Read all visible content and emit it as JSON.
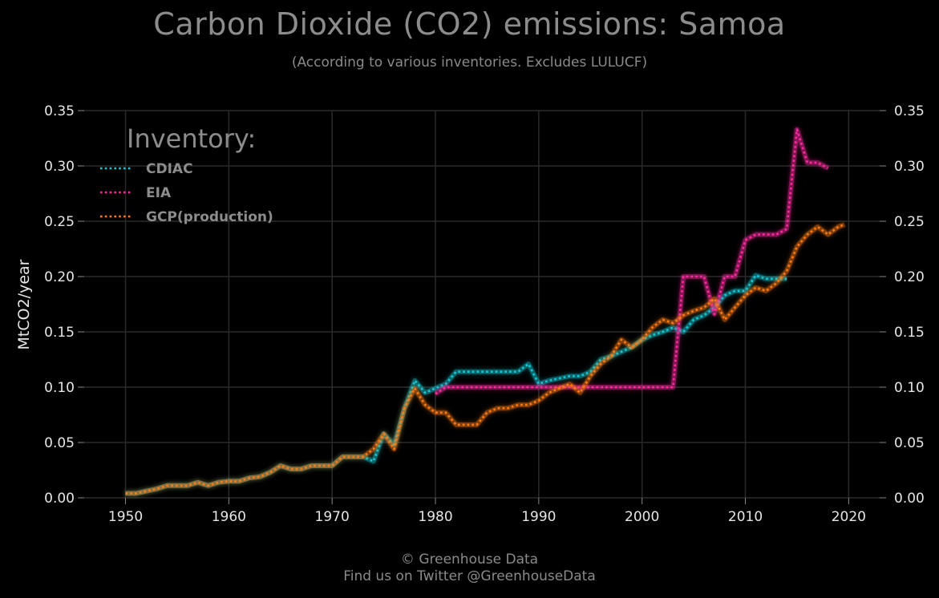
{
  "header": {
    "title": "Carbon Dioxide (CO2) emissions: Samoa",
    "subtitle": "(According to various inventories. Excludes LULUCF)"
  },
  "footer": {
    "line1": "© Greenhouse Data",
    "line2": "Find us on Twitter @GreenhouseData"
  },
  "chart_data": {
    "type": "line",
    "title": "Carbon Dioxide (CO2) emissions: Samoa",
    "subtitle": "(According to various inventories. Excludes LULUCF)",
    "xlabel": "",
    "ylabel": "MtCO2/year",
    "xlim": [
      1946,
      2023
    ],
    "ylim": [
      0,
      0.35
    ],
    "x_ticks": [
      "1950",
      "1960",
      "1970",
      "1980",
      "1990",
      "2000",
      "2010",
      "2020"
    ],
    "y_ticks": [
      "0.00",
      "0.05",
      "0.10",
      "0.15",
      "0.20",
      "0.25",
      "0.30",
      "0.35"
    ],
    "grid": true,
    "legend": {
      "title": "Inventory:",
      "placement": "top-left"
    },
    "colors": {
      "background": "#000000",
      "grid": "#2a2a2a"
    },
    "series": [
      {
        "name": "CDIAC",
        "color": "#16c8d4",
        "points": [
          [
            1950,
            0.004
          ],
          [
            1951,
            0.004
          ],
          [
            1952,
            0.006
          ],
          [
            1953,
            0.008
          ],
          [
            1954,
            0.011
          ],
          [
            1955,
            0.011
          ],
          [
            1956,
            0.011
          ],
          [
            1957,
            0.014
          ],
          [
            1958,
            0.011
          ],
          [
            1959,
            0.014
          ],
          [
            1960,
            0.015
          ],
          [
            1961,
            0.015
          ],
          [
            1962,
            0.018
          ],
          [
            1963,
            0.019
          ],
          [
            1964,
            0.023
          ],
          [
            1965,
            0.029
          ],
          [
            1966,
            0.026
          ],
          [
            1967,
            0.026
          ],
          [
            1968,
            0.029
          ],
          [
            1969,
            0.029
          ],
          [
            1970,
            0.029
          ],
          [
            1971,
            0.037
          ],
          [
            1972,
            0.037
          ],
          [
            1973,
            0.037
          ],
          [
            1974,
            0.033
          ],
          [
            1975,
            0.058
          ],
          [
            1976,
            0.048
          ],
          [
            1977,
            0.081
          ],
          [
            1978,
            0.106
          ],
          [
            1979,
            0.095
          ],
          [
            1980,
            0.099
          ],
          [
            1981,
            0.103
          ],
          [
            1982,
            0.114
          ],
          [
            1983,
            0.114
          ],
          [
            1984,
            0.114
          ],
          [
            1985,
            0.114
          ],
          [
            1986,
            0.114
          ],
          [
            1987,
            0.114
          ],
          [
            1988,
            0.114
          ],
          [
            1989,
            0.121
          ],
          [
            1990,
            0.103
          ],
          [
            1991,
            0.106
          ],
          [
            1992,
            0.108
          ],
          [
            1993,
            0.11
          ],
          [
            1994,
            0.11
          ],
          [
            1995,
            0.114
          ],
          [
            1996,
            0.125
          ],
          [
            1997,
            0.128
          ],
          [
            1998,
            0.132
          ],
          [
            1999,
            0.136
          ],
          [
            2000,
            0.143
          ],
          [
            2001,
            0.147
          ],
          [
            2002,
            0.15
          ],
          [
            2003,
            0.154
          ],
          [
            2004,
            0.15
          ],
          [
            2005,
            0.161
          ],
          [
            2006,
            0.165
          ],
          [
            2007,
            0.172
          ],
          [
            2008,
            0.183
          ],
          [
            2009,
            0.187
          ],
          [
            2010,
            0.187
          ],
          [
            2011,
            0.201
          ],
          [
            2012,
            0.198
          ],
          [
            2013,
            0.198
          ],
          [
            2014,
            0.198
          ]
        ]
      },
      {
        "name": "EIA",
        "color": "#ff2aa0",
        "points": [
          [
            1980,
            0.094
          ],
          [
            1981,
            0.1
          ],
          [
            1982,
            0.1
          ],
          [
            1983,
            0.1
          ],
          [
            1984,
            0.1
          ],
          [
            1985,
            0.1
          ],
          [
            1986,
            0.1
          ],
          [
            1987,
            0.1
          ],
          [
            1988,
            0.1
          ],
          [
            1989,
            0.1
          ],
          [
            1990,
            0.1
          ],
          [
            1991,
            0.1
          ],
          [
            1992,
            0.1
          ],
          [
            1993,
            0.1
          ],
          [
            1994,
            0.1
          ],
          [
            1995,
            0.1
          ],
          [
            1996,
            0.1
          ],
          [
            1997,
            0.1
          ],
          [
            1998,
            0.1
          ],
          [
            1999,
            0.1
          ],
          [
            2000,
            0.1
          ],
          [
            2001,
            0.1
          ],
          [
            2002,
            0.1
          ],
          [
            2003,
            0.1
          ],
          [
            2004,
            0.2
          ],
          [
            2005,
            0.2
          ],
          [
            2006,
            0.2
          ],
          [
            2007,
            0.166
          ],
          [
            2008,
            0.2
          ],
          [
            2009,
            0.2
          ],
          [
            2010,
            0.233
          ],
          [
            2011,
            0.238
          ],
          [
            2012,
            0.238
          ],
          [
            2013,
            0.238
          ],
          [
            2014,
            0.243
          ],
          [
            2015,
            0.333
          ],
          [
            2016,
            0.303
          ],
          [
            2017,
            0.303
          ],
          [
            2018,
            0.298
          ]
        ]
      },
      {
        "name": "GCP(production)",
        "color": "#ff7a12",
        "points": [
          [
            1950,
            0.004
          ],
          [
            1951,
            0.004
          ],
          [
            1952,
            0.006
          ],
          [
            1953,
            0.008
          ],
          [
            1954,
            0.011
          ],
          [
            1955,
            0.011
          ],
          [
            1956,
            0.011
          ],
          [
            1957,
            0.014
          ],
          [
            1958,
            0.011
          ],
          [
            1959,
            0.014
          ],
          [
            1960,
            0.015
          ],
          [
            1961,
            0.015
          ],
          [
            1962,
            0.018
          ],
          [
            1963,
            0.019
          ],
          [
            1964,
            0.023
          ],
          [
            1965,
            0.029
          ],
          [
            1966,
            0.026
          ],
          [
            1967,
            0.026
          ],
          [
            1968,
            0.029
          ],
          [
            1969,
            0.029
          ],
          [
            1970,
            0.029
          ],
          [
            1971,
            0.037
          ],
          [
            1972,
            0.037
          ],
          [
            1973,
            0.037
          ],
          [
            1974,
            0.044
          ],
          [
            1975,
            0.058
          ],
          [
            1976,
            0.044
          ],
          [
            1977,
            0.081
          ],
          [
            1978,
            0.099
          ],
          [
            1979,
            0.084
          ],
          [
            1980,
            0.077
          ],
          [
            1981,
            0.077
          ],
          [
            1982,
            0.066
          ],
          [
            1983,
            0.066
          ],
          [
            1984,
            0.066
          ],
          [
            1985,
            0.077
          ],
          [
            1986,
            0.081
          ],
          [
            1987,
            0.081
          ],
          [
            1988,
            0.084
          ],
          [
            1989,
            0.084
          ],
          [
            1990,
            0.088
          ],
          [
            1991,
            0.095
          ],
          [
            1992,
            0.099
          ],
          [
            1993,
            0.103
          ],
          [
            1994,
            0.095
          ],
          [
            1995,
            0.11
          ],
          [
            1996,
            0.121
          ],
          [
            1997,
            0.128
          ],
          [
            1998,
            0.143
          ],
          [
            1999,
            0.136
          ],
          [
            2000,
            0.143
          ],
          [
            2001,
            0.154
          ],
          [
            2002,
            0.161
          ],
          [
            2003,
            0.158
          ],
          [
            2004,
            0.165
          ],
          [
            2005,
            0.169
          ],
          [
            2006,
            0.172
          ],
          [
            2007,
            0.18
          ],
          [
            2008,
            0.161
          ],
          [
            2009,
            0.172
          ],
          [
            2010,
            0.183
          ],
          [
            2011,
            0.19
          ],
          [
            2012,
            0.187
          ],
          [
            2013,
            0.194
          ],
          [
            2014,
            0.205
          ],
          [
            2015,
            0.227
          ],
          [
            2016,
            0.238
          ],
          [
            2017,
            0.245
          ],
          [
            2018,
            0.238
          ],
          [
            2019,
            0.245
          ],
          [
            2019.6,
            0.247
          ]
        ]
      }
    ]
  }
}
